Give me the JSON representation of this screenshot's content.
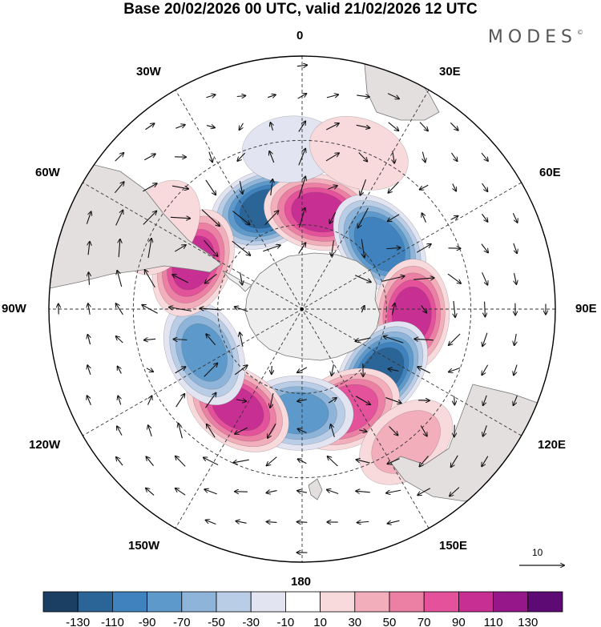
{
  "title": "Base 20/02/2026 00 UTC, valid 21/02/2026 12 UTC",
  "brand": {
    "text": "MODES",
    "mark": "©"
  },
  "longitude_labels": {
    "lon_0": "0",
    "lon_30e": "30E",
    "lon_60e": "60E",
    "lon_90e": "90E",
    "lon_120e": "120E",
    "lon_150e": "150E",
    "lon_180": "180",
    "lon_150w": "150W",
    "lon_120w": "120W",
    "lon_90w": "90W",
    "lon_60w": "60W",
    "lon_30w": "30W"
  },
  "reference_vector": {
    "value": "10"
  },
  "colorbar": {
    "ticks": [
      "-130",
      "-110",
      "-90",
      "-70",
      "-50",
      "-30",
      "-10",
      "10",
      "30",
      "50",
      "70",
      "90",
      "110",
      "130"
    ],
    "colors": [
      "#1b3f63",
      "#2b6497",
      "#3f82bd",
      "#5d9acb",
      "#8eb5d9",
      "#b9cde6",
      "#e2e5f1",
      "#ffffff",
      "#f8d9dc",
      "#f2aeba",
      "#ec7fa4",
      "#e3529a",
      "#c82f92",
      "#95178a",
      "#5e0a74"
    ]
  },
  "anomaly_centers": [
    {
      "lon": -20,
      "lat": -52,
      "value": -120
    },
    {
      "lon": 10,
      "lat": -55,
      "value": 100
    },
    {
      "lon": 50,
      "lat": -54,
      "value": -110
    },
    {
      "lon": 93,
      "lat": -51,
      "value": 100
    },
    {
      "lon": 128,
      "lat": -54,
      "value": -120
    },
    {
      "lon": 156,
      "lat": -51,
      "value": 90
    },
    {
      "lon": -178,
      "lat": -53,
      "value": -80
    },
    {
      "lon": -147,
      "lat": -48,
      "value": 100
    },
    {
      "lon": -114,
      "lat": -52,
      "value": -80
    },
    {
      "lon": -67,
      "lat": -48,
      "value": 100
    },
    {
      "lon": -4,
      "lat": -33,
      "value": -20
    },
    {
      "lon": 20,
      "lat": -31,
      "value": 30
    },
    {
      "lon": -60,
      "lat": -32,
      "value": 30
    },
    {
      "lon": 142,
      "lat": -30,
      "value": 40
    }
  ]
}
